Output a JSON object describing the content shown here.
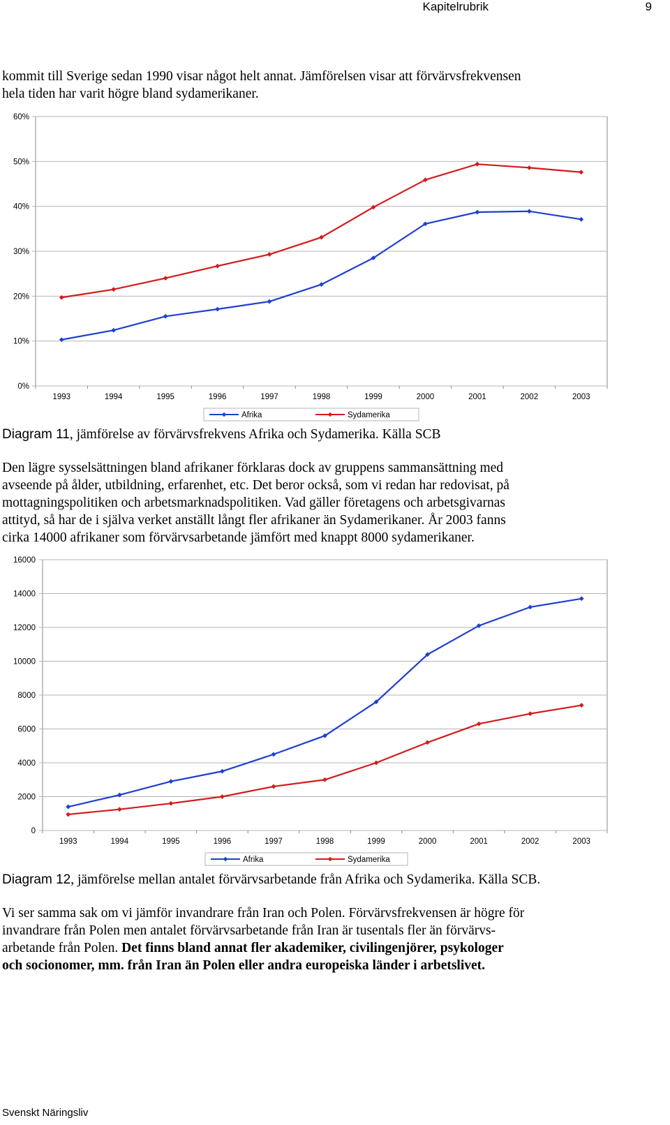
{
  "header": {
    "chapter": "Kapitelrubrik",
    "page_number": "9"
  },
  "intro": {
    "line1": "kommit till Sverige sedan 1990 visar något helt annat. Jämförelsen visar att förvärvsfrekvensen",
    "line2": "hela tiden har varit högre bland sydamerikaner."
  },
  "caption1": {
    "label": "Diagram 11",
    "rest": ", jämförelse av förvärvsfrekvens Afrika och Sydamerika. Källa SCB"
  },
  "paragraph2": {
    "lines": [
      "Den lägre sysselsättningen bland afrikaner förklaras dock av gruppens sammansättning med",
      "avseende på ålder, utbildning, erfarenhet, etc. Det beror också, som vi redan har redovisat, på",
      "mottagningspolitiken och arbetsmarknadspolitiken. Vad gäller företagens och arbetsgivarnas",
      "attityd, så har de i själva verket anställt långt fler afrikaner än Sydamerikaner. År 2003 fanns",
      "cirka 14000 afrikaner som förvärvsarbetande jämfört med knappt 8000 sydamerikaner."
    ]
  },
  "caption2": {
    "label": "Diagram 12",
    "rest": ", jämförelse mellan antalet förvärvsarbetande från Afrika och Sydamerika. Källa SCB."
  },
  "paragraph3": {
    "line1": "Vi ser samma sak om vi jämför invandrare från Iran och Polen. Förvärvsfrekvensen är högre för",
    "line2": "invandrare från Polen men antalet förvärvsarbetande från Iran är tusentals fler än förvärvs-",
    "line3_plain": "arbetande från Polen. ",
    "line3_bold": "Det finns bland annat fler akademiker, civilingenjörer, psykologer",
    "line4_bold": "och socionomer, mm. från Iran än Polen eller andra europeiska länder i arbetslivet."
  },
  "footer": {
    "text": "Svenskt Näringsliv"
  },
  "colors": {
    "afrika": "#1f3fd0",
    "sydamerika": "#d41a1a",
    "grid": "#b4b4b4",
    "axis": "#888888"
  },
  "chart_data": [
    {
      "type": "line",
      "title": "",
      "categories": [
        "1993",
        "1994",
        "1995",
        "1996",
        "1997",
        "1998",
        "1999",
        "2000",
        "2001",
        "2002",
        "2003"
      ],
      "series": [
        {
          "name": "Afrika",
          "values": [
            10.3,
            12.4,
            15.5,
            17.1,
            18.8,
            22.6,
            28.5,
            36.1,
            38.7,
            38.9,
            37.1
          ]
        },
        {
          "name": "Sydamerika",
          "values": [
            19.7,
            21.5,
            24.0,
            26.7,
            29.3,
            33.1,
            39.8,
            45.9,
            49.4,
            48.6,
            47.6
          ]
        }
      ],
      "ylim": [
        0,
        60
      ],
      "yticks": [
        0,
        10,
        20,
        30,
        40,
        50,
        60
      ],
      "ytick_labels": [
        "0%",
        "10%",
        "20%",
        "30%",
        "40%",
        "50%",
        "60%"
      ],
      "legend": "bottom",
      "grid": true
    },
    {
      "type": "line",
      "title": "",
      "categories": [
        "1993",
        "1994",
        "1995",
        "1996",
        "1997",
        "1998",
        "1999",
        "2000",
        "2001",
        "2002",
        "2003"
      ],
      "series": [
        {
          "name": "Afrika",
          "values": [
            1400,
            2100,
            2900,
            3500,
            4500,
            5600,
            7600,
            10400,
            12100,
            13200,
            13700
          ]
        },
        {
          "name": "Sydamerika",
          "values": [
            950,
            1250,
            1600,
            2000,
            2600,
            3000,
            4000,
            5200,
            6300,
            6900,
            7400
          ]
        }
      ],
      "ylim": [
        0,
        16000
      ],
      "yticks": [
        0,
        2000,
        4000,
        6000,
        8000,
        10000,
        12000,
        14000,
        16000
      ],
      "ytick_labels": [
        "0",
        "2000",
        "4000",
        "6000",
        "8000",
        "10000",
        "12000",
        "14000",
        "16000"
      ],
      "legend": "bottom",
      "grid": true
    }
  ]
}
